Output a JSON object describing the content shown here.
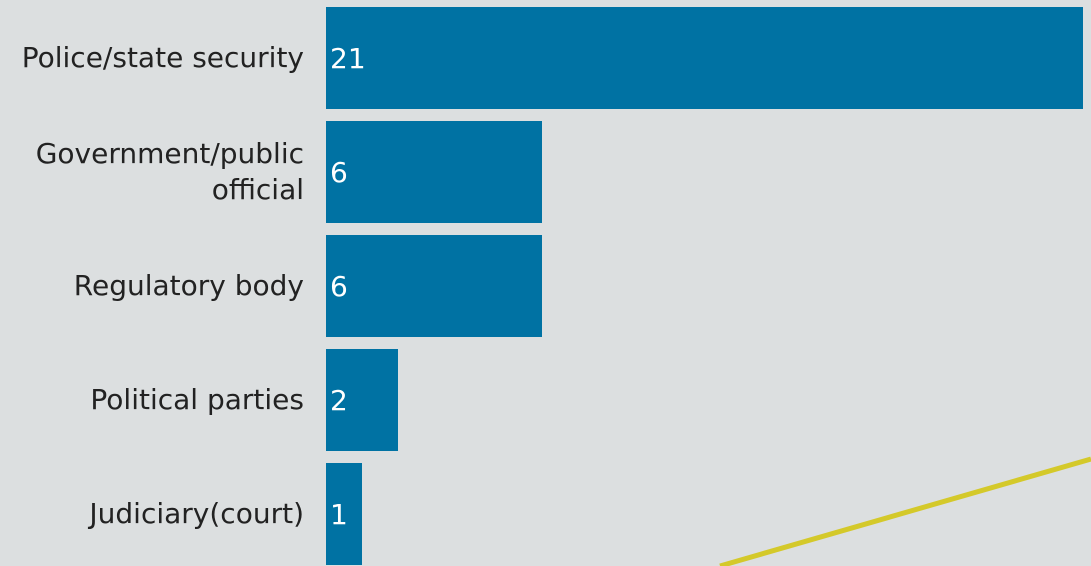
{
  "chart_data": {
    "type": "bar",
    "orientation": "horizontal",
    "categories": [
      "Police/state security",
      "Government/public official",
      "Regulatory body",
      "Political parties",
      "Judiciary(court)"
    ],
    "values": [
      21,
      6,
      6,
      2,
      1
    ],
    "data_labels": [
      "21",
      "6",
      "6",
      "2",
      "1"
    ],
    "xlim": [
      0,
      21
    ],
    "grid": false,
    "legend": "none",
    "bar_color": "#0072a3",
    "label_color": "#222222",
    "value_label_color": "#ffffff",
    "background_color": "#dcdfe0",
    "accent_line_color": "#d4c92a"
  }
}
